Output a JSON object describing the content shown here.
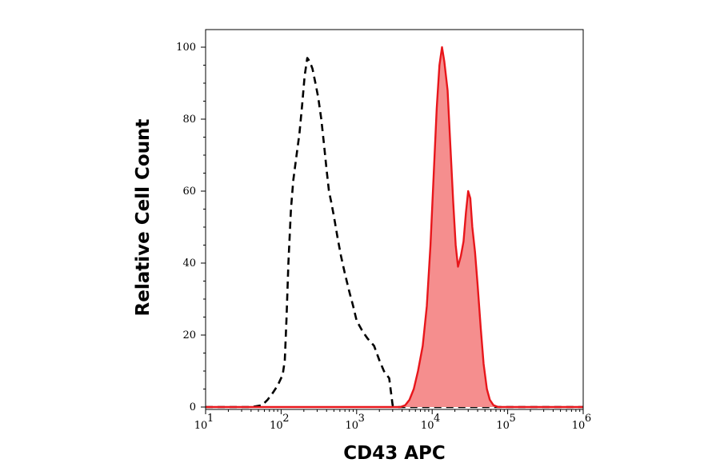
{
  "chart_data": {
    "type": "area",
    "title": "",
    "xlabel": "CD43 APC",
    "ylabel": "Relative Cell Count",
    "xscale": "log",
    "xlim": [
      10,
      1000000
    ],
    "ylim": [
      0,
      100
    ],
    "x_ticks": [
      {
        "value": 10,
        "base": "10",
        "exp": "1"
      },
      {
        "value": 100,
        "base": "10",
        "exp": "2"
      },
      {
        "value": 1000,
        "base": "10",
        "exp": "3"
      },
      {
        "value": 10000,
        "base": "10",
        "exp": "4"
      },
      {
        "value": 100000,
        "base": "10",
        "exp": "5"
      },
      {
        "value": 1000000,
        "base": "10",
        "exp": "6"
      }
    ],
    "y_ticks": [
      "0",
      "20",
      "40",
      "60",
      "80",
      "100"
    ],
    "grid": false,
    "legend": "none",
    "series": [
      {
        "style": "dashed",
        "color": "#000000",
        "fill": "none",
        "points": [
          [
            10,
            0
          ],
          [
            40,
            0
          ],
          [
            56,
            0.5
          ],
          [
            66,
            2
          ],
          [
            78,
            4
          ],
          [
            90,
            6
          ],
          [
            105,
            9
          ],
          [
            112,
            13
          ],
          [
            118,
            25
          ],
          [
            125,
            40
          ],
          [
            135,
            55
          ],
          [
            145,
            63
          ],
          [
            160,
            70
          ],
          [
            175,
            76
          ],
          [
            190,
            84
          ],
          [
            205,
            92
          ],
          [
            222,
            97
          ],
          [
            240,
            96
          ],
          [
            260,
            94
          ],
          [
            285,
            90
          ],
          [
            310,
            86
          ],
          [
            340,
            80
          ],
          [
            370,
            73
          ],
          [
            400,
            66
          ],
          [
            430,
            60
          ],
          [
            460,
            57
          ],
          [
            500,
            53
          ],
          [
            560,
            47
          ],
          [
            620,
            42
          ],
          [
            700,
            37
          ],
          [
            800,
            32
          ],
          [
            900,
            28
          ],
          [
            1000,
            24
          ],
          [
            1200,
            21
          ],
          [
            1400,
            19
          ],
          [
            1700,
            17
          ],
          [
            2000,
            13
          ],
          [
            2300,
            10
          ],
          [
            2700,
            8
          ],
          [
            3000,
            0.5
          ],
          [
            3500,
            0
          ],
          [
            1000000,
            0
          ]
        ]
      },
      {
        "style": "solid",
        "color": "#e8161b",
        "fill": "#f58e8e",
        "points": [
          [
            10,
            0
          ],
          [
            3800,
            0
          ],
          [
            4400,
            0.5
          ],
          [
            5000,
            2
          ],
          [
            5700,
            5
          ],
          [
            6500,
            10
          ],
          [
            7500,
            17
          ],
          [
            8500,
            28
          ],
          [
            9500,
            45
          ],
          [
            10500,
            65
          ],
          [
            11500,
            83
          ],
          [
            12500,
            95
          ],
          [
            13500,
            100
          ],
          [
            14500,
            96
          ],
          [
            16000,
            88
          ],
          [
            17500,
            72
          ],
          [
            19000,
            57
          ],
          [
            20500,
            45
          ],
          [
            22000,
            39
          ],
          [
            24000,
            42
          ],
          [
            26000,
            46
          ],
          [
            28000,
            54
          ],
          [
            30000,
            60
          ],
          [
            32000,
            58
          ],
          [
            34000,
            50
          ],
          [
            37000,
            43
          ],
          [
            40000,
            34
          ],
          [
            44000,
            22
          ],
          [
            48000,
            12
          ],
          [
            53000,
            5
          ],
          [
            58000,
            2
          ],
          [
            65000,
            0.5
          ],
          [
            75000,
            0
          ],
          [
            1000000,
            0
          ]
        ]
      }
    ]
  }
}
